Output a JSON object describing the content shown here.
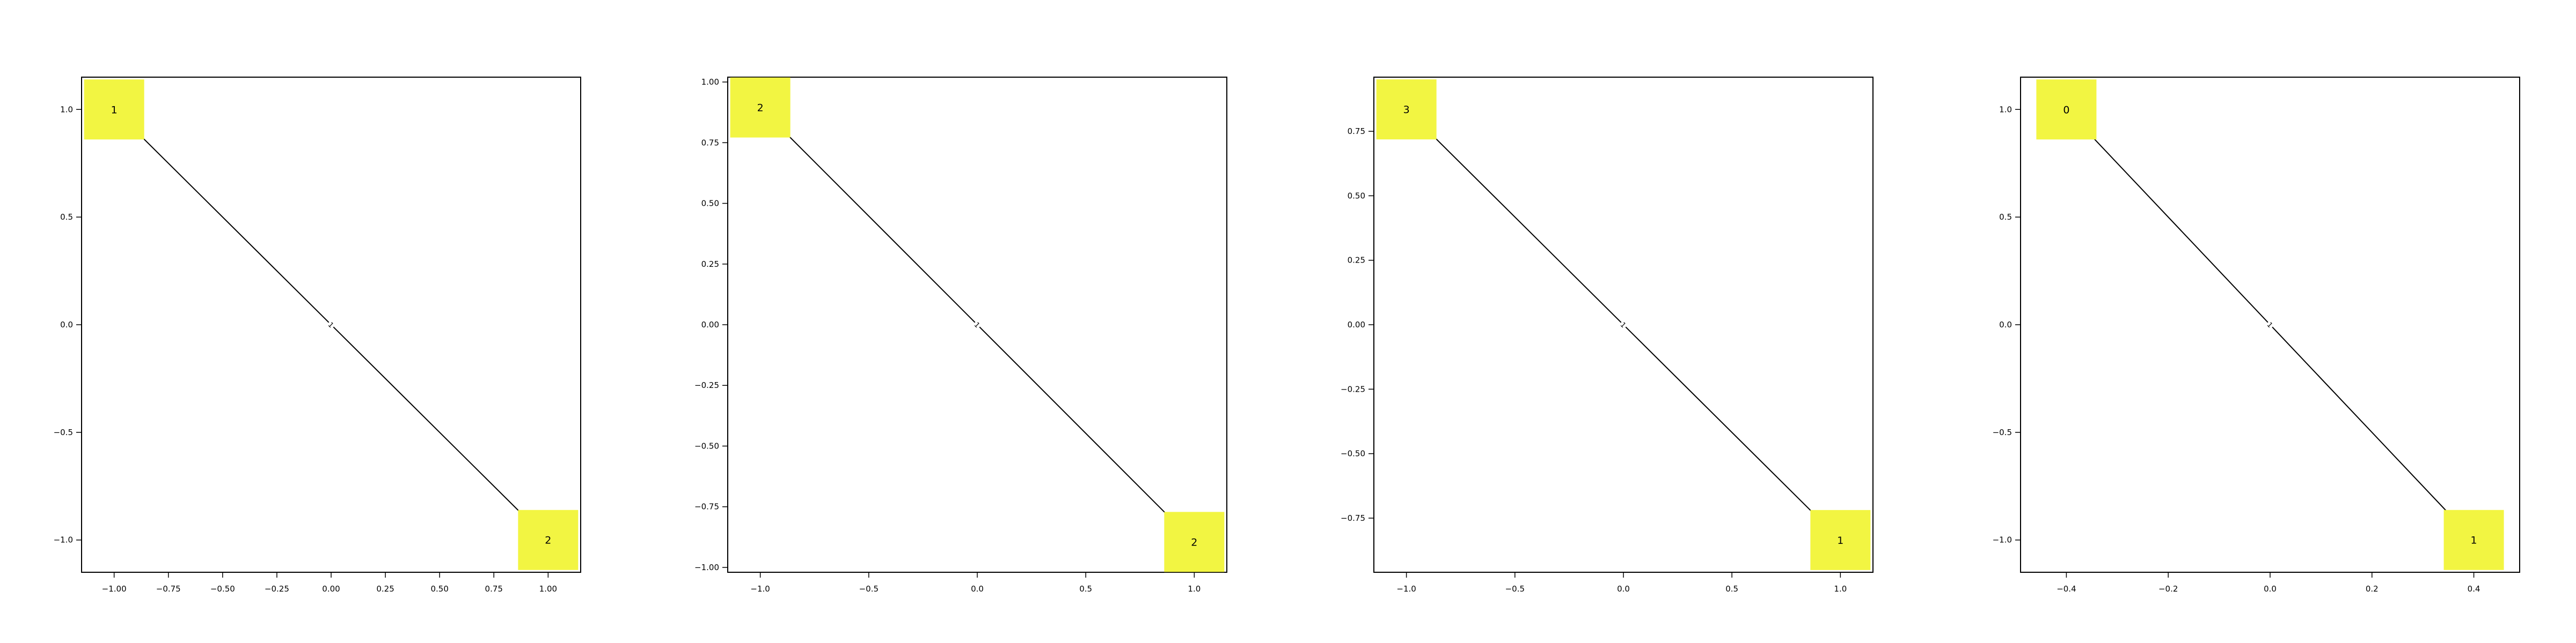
{
  "style": {
    "node_color": "#f2f542",
    "edge_color": "#000000",
    "axes_color": "#000000",
    "background": "#ffffff"
  },
  "chart_data": [
    {
      "type": "graph",
      "xlim": [
        -1.15,
        1.15
      ],
      "ylim": [
        -1.15,
        1.15
      ],
      "xticks": [
        -1.0,
        -0.75,
        -0.5,
        -0.25,
        0.0,
        0.25,
        0.5,
        0.75,
        1.0
      ],
      "xtick_labels": [
        "−1.00",
        "−0.75",
        "−0.50",
        "−0.25",
        "0.00",
        "0.25",
        "0.50",
        "0.75",
        "1.00"
      ],
      "yticks": [
        -1.0,
        -0.5,
        0.0,
        0.5,
        1.0
      ],
      "ytick_labels": [
        "−1.0",
        "−0.5",
        "0.0",
        "0.5",
        "1.0"
      ],
      "nodes": [
        {
          "label": "1",
          "x": -1.0,
          "y": 1.0
        },
        {
          "label": "2",
          "x": 1.0,
          "y": -1.0
        }
      ],
      "edges": [
        {
          "from": 0,
          "to": 1,
          "label": "1"
        }
      ]
    },
    {
      "type": "graph",
      "xlim": [
        -1.15,
        1.15
      ],
      "ylim": [
        -1.02,
        1.02
      ],
      "xticks": [
        -1.0,
        -0.5,
        0.0,
        0.5,
        1.0
      ],
      "xtick_labels": [
        "−1.0",
        "−0.5",
        "0.0",
        "0.5",
        "1.0"
      ],
      "yticks": [
        -1.0,
        -0.75,
        -0.5,
        -0.25,
        0.0,
        0.25,
        0.5,
        0.75,
        1.0
      ],
      "ytick_labels": [
        "−1.00",
        "−0.75",
        "−0.50",
        "−0.25",
        "0.00",
        "0.25",
        "0.50",
        "0.75",
        "1.00"
      ],
      "nodes": [
        {
          "label": "2",
          "x": -1.0,
          "y": 0.895
        },
        {
          "label": "2",
          "x": 1.0,
          "y": -0.895
        }
      ],
      "edges": [
        {
          "from": 0,
          "to": 1,
          "label": "1"
        }
      ]
    },
    {
      "type": "graph",
      "xlim": [
        -1.15,
        1.15
      ],
      "ylim": [
        -0.96,
        0.96
      ],
      "xticks": [
        -1.0,
        -0.5,
        0.0,
        0.5,
        1.0
      ],
      "xtick_labels": [
        "−1.0",
        "−0.5",
        "0.0",
        "0.5",
        "1.0"
      ],
      "yticks": [
        -0.75,
        -0.5,
        -0.25,
        0.0,
        0.25,
        0.5,
        0.75
      ],
      "ytick_labels": [
        "−0.75",
        "−0.50",
        "−0.25",
        "0.00",
        "0.25",
        "0.50",
        "0.75"
      ],
      "nodes": [
        {
          "label": "3",
          "x": -1.0,
          "y": 0.835
        },
        {
          "label": "1",
          "x": 1.0,
          "y": -0.835
        }
      ],
      "edges": [
        {
          "from": 0,
          "to": 1,
          "label": "1"
        }
      ]
    },
    {
      "type": "graph",
      "xlim": [
        -0.49,
        0.49
      ],
      "ylim": [
        -1.15,
        1.15
      ],
      "xticks": [
        -0.4,
        -0.2,
        0.0,
        0.2,
        0.4
      ],
      "xtick_labels": [
        "−0.4",
        "−0.2",
        "0.0",
        "0.2",
        "0.4"
      ],
      "yticks": [
        -1.0,
        -0.5,
        0.0,
        0.5,
        1.0
      ],
      "ytick_labels": [
        "−1.0",
        "−0.5",
        "0.0",
        "0.5",
        "1.0"
      ],
      "nodes": [
        {
          "label": "0",
          "x": -0.4,
          "y": 1.0
        },
        {
          "label": "1",
          "x": 0.4,
          "y": -1.0
        }
      ],
      "edges": [
        {
          "from": 0,
          "to": 1,
          "label": "1"
        }
      ]
    }
  ]
}
